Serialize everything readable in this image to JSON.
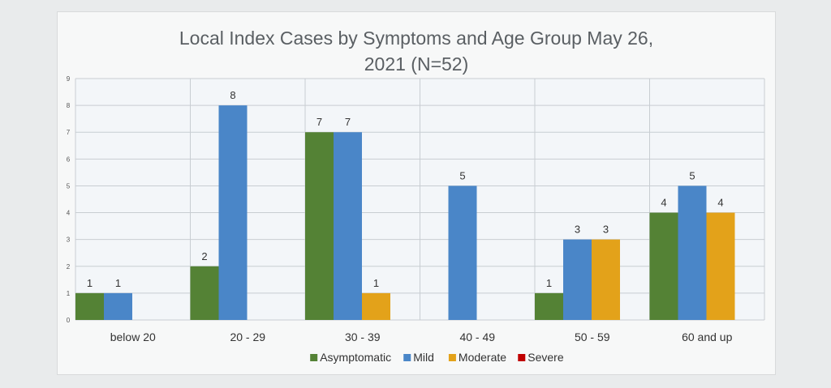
{
  "chart_data": {
    "type": "bar",
    "title_lines": [
      "Local Index Cases by Symptoms and Age Group May 26,",
      "2021 (N=52)"
    ],
    "categories": [
      "below 20",
      "20 - 29",
      "30 - 39",
      "40 - 49",
      "50 - 59",
      "60 and up"
    ],
    "series": [
      {
        "name": "Asymptomatic",
        "color": "#548235",
        "values": [
          1,
          2,
          7,
          0,
          1,
          4
        ]
      },
      {
        "name": "Mild",
        "color": "#4a86c8",
        "values": [
          1,
          8,
          7,
          5,
          3,
          5
        ]
      },
      {
        "name": "Moderate",
        "color": "#e3a21a",
        "values": [
          0,
          0,
          1,
          0,
          3,
          4
        ]
      },
      {
        "name": "Severe",
        "color": "#c00000",
        "values": [
          0,
          0,
          0,
          0,
          0,
          0
        ]
      }
    ],
    "ylim": [
      0,
      9
    ],
    "yticks": [
      0,
      1,
      2,
      3,
      4,
      5,
      6,
      7,
      8,
      9
    ],
    "grid": true,
    "legend": "bottom"
  }
}
